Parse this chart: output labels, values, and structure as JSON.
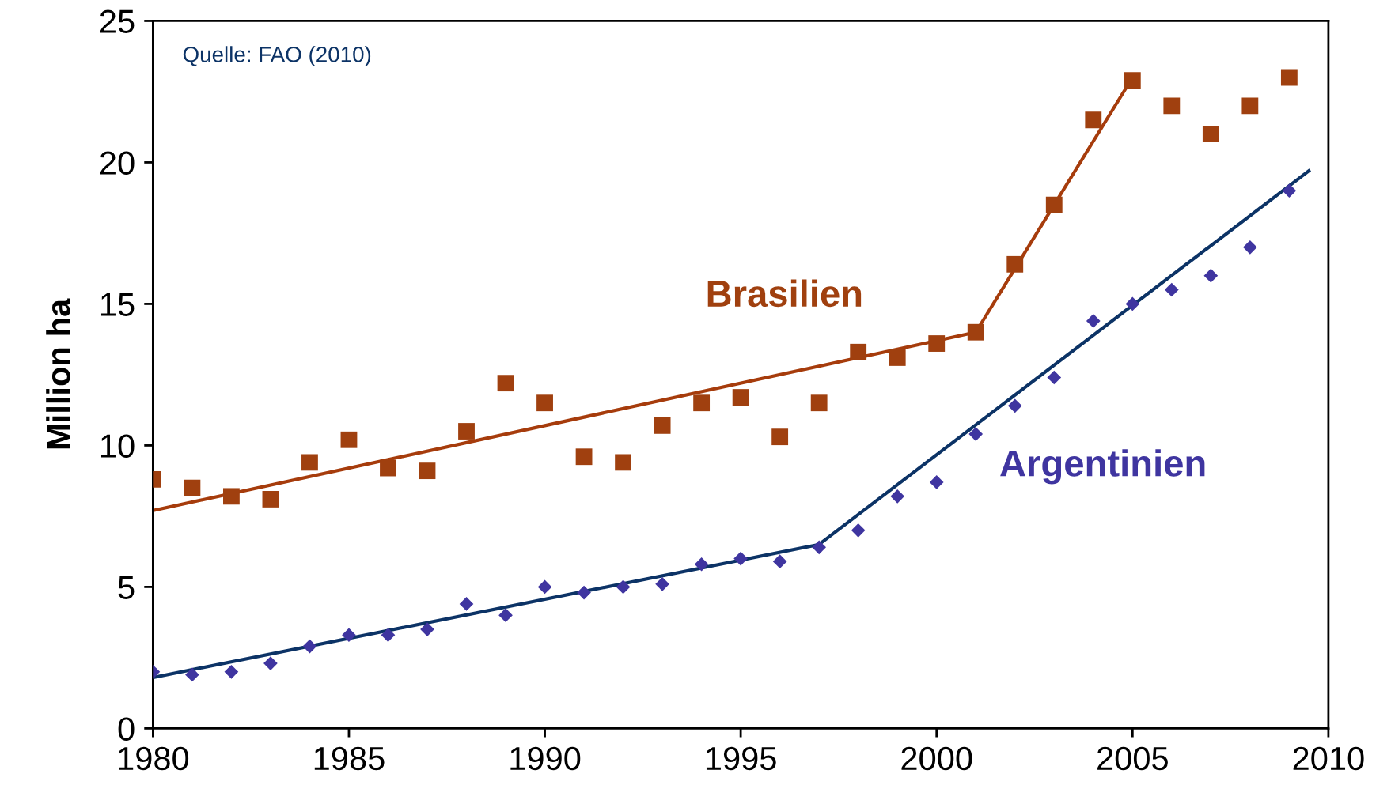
{
  "chart_data": {
    "type": "scatter",
    "ylabel": "Million ha",
    "annotations": [
      "Quelle: FAO (2010)"
    ],
    "xlim": [
      1980,
      2010
    ],
    "xticks": [
      1980,
      1985,
      1990,
      1995,
      2000,
      2005,
      2010
    ],
    "ylim": [
      0,
      25
    ],
    "yticks": [
      0,
      5,
      10,
      15,
      20,
      25
    ],
    "grid": false,
    "legend": false,
    "series": [
      {
        "name": "Brasilien",
        "marker": "square",
        "color": "#a0400f",
        "x": [
          1980,
          1981,
          1982,
          1983,
          1984,
          1985,
          1986,
          1987,
          1988,
          1989,
          1990,
          1991,
          1992,
          1993,
          1994,
          1995,
          1996,
          1997,
          1998,
          1999,
          2000,
          2001,
          2002,
          2003,
          2004,
          2005,
          2006,
          2007,
          2008,
          2009
        ],
        "values": [
          8.8,
          8.5,
          8.2,
          8.1,
          9.4,
          10.2,
          9.2,
          9.1,
          10.5,
          12.2,
          11.5,
          9.6,
          9.4,
          10.7,
          11.5,
          11.7,
          10.3,
          11.5,
          13.3,
          13.1,
          13.6,
          14.0,
          16.4,
          18.5,
          21.5,
          22.9,
          22.0,
          21.0,
          22.0,
          23.0
        ]
      },
      {
        "name": "Argentinien",
        "marker": "diamond",
        "color": "#3f35a0",
        "x": [
          1980,
          1981,
          1982,
          1983,
          1984,
          1985,
          1986,
          1987,
          1988,
          1989,
          1990,
          1991,
          1992,
          1993,
          1994,
          1995,
          1996,
          1997,
          1998,
          1999,
          2000,
          2001,
          2002,
          2003,
          2004,
          2005,
          2006,
          2007,
          2008,
          2009
        ],
        "values": [
          2.0,
          1.9,
          2.0,
          2.3,
          2.9,
          3.3,
          3.3,
          3.5,
          4.4,
          4.0,
          5.0,
          4.8,
          5.0,
          5.1,
          5.8,
          6.0,
          5.9,
          6.4,
          7.0,
          8.2,
          8.7,
          10.4,
          11.4,
          12.4,
          14.4,
          15.0,
          15.5,
          16.0,
          17.0,
          19.0
        ]
      },
      {
        "type": "line",
        "marker": "none",
        "color": "#a63c0c",
        "x": [
          1980,
          2001,
          2005
        ],
        "values": [
          7.7,
          14.0,
          23.0
        ]
      },
      {
        "type": "line",
        "marker": "none",
        "color": "#0c3366",
        "x": [
          1980,
          1997,
          2009.5
        ],
        "values": [
          1.8,
          6.5,
          19.7
        ]
      }
    ]
  }
}
